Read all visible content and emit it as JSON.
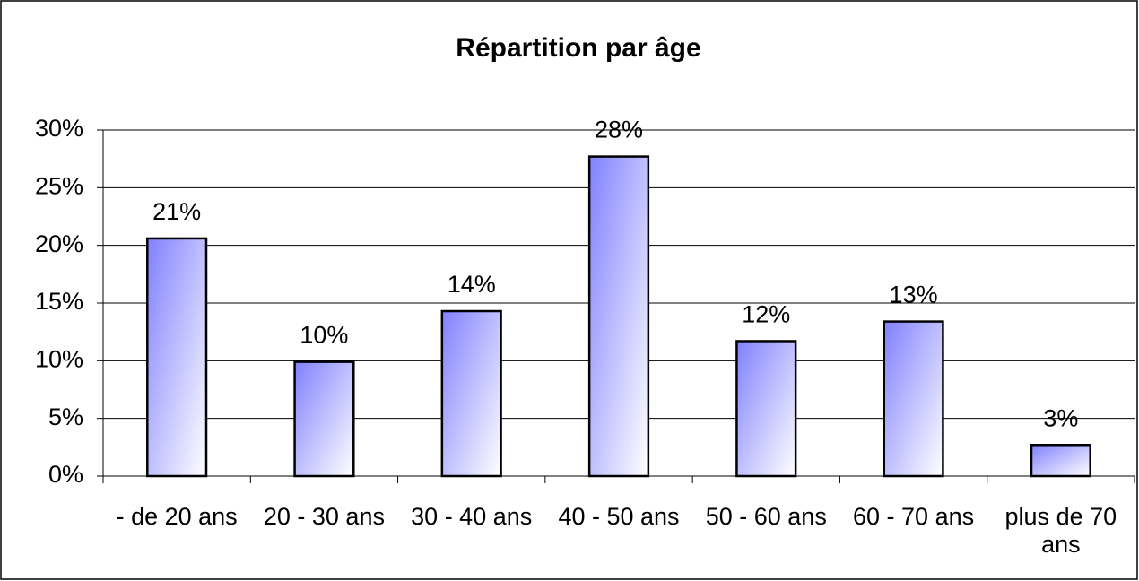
{
  "chart_data": {
    "type": "bar",
    "title": "Répartition par âge",
    "categories": [
      "- de 20 ans",
      "20 - 30 ans",
      "30 - 40 ans",
      "40 - 50 ans",
      "50 - 60 ans",
      "60 - 70 ans",
      "plus de 70 ans"
    ],
    "values": [
      20.6,
      9.9,
      14.3,
      27.7,
      11.7,
      13.4,
      2.7
    ],
    "value_labels": [
      "21%",
      "10%",
      "14%",
      "28%",
      "12%",
      "13%",
      "3%"
    ],
    "color": "#8080ff",
    "ylim": [
      0,
      30
    ],
    "yticks": [
      {
        "value": 0,
        "label": "0%"
      },
      {
        "value": 5,
        "label": "5%"
      },
      {
        "value": 10,
        "label": "10%"
      },
      {
        "value": 15,
        "label": "15%"
      },
      {
        "value": 20,
        "label": "20%"
      },
      {
        "value": 25,
        "label": "25%"
      },
      {
        "value": 30,
        "label": "30%"
      }
    ],
    "grid": true
  }
}
